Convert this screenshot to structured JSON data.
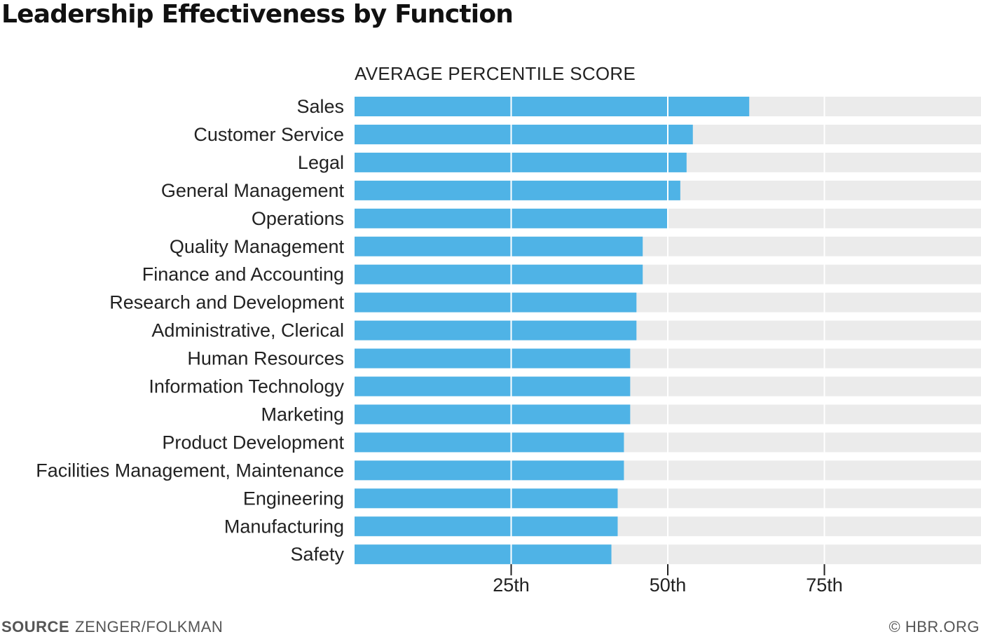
{
  "header": {
    "title": "Leadership Effectiveness by Function"
  },
  "footer": {
    "source_key": "SOURCE",
    "source_value": "ZENGER/FOLKMAN",
    "credit": "© HBR.ORG"
  },
  "colors": {
    "bar": "#4fb3e6",
    "track": "#ebebeb",
    "grid": "#ffffff",
    "tick": "#222222"
  },
  "chart_data": {
    "type": "bar",
    "orientation": "horizontal",
    "title": "Leadership Effectiveness by Function",
    "xlabel": "AVERAGE PERCENTILE SCORE",
    "ylabel": "",
    "xlim": [
      0,
      100
    ],
    "xticks": [
      {
        "value": 25,
        "label": "25th"
      },
      {
        "value": 50,
        "label": "50th"
      },
      {
        "value": 75,
        "label": "75th"
      }
    ],
    "grid": true,
    "categories": [
      "Sales",
      "Customer Service",
      "Legal",
      "General Management",
      "Operations",
      "Quality Management",
      "Finance and Accounting",
      "Research and Development",
      "Administrative, Clerical",
      "Human Resources",
      "Information Technology",
      "Marketing",
      "Product Development",
      "Facilities Management, Maintenance",
      "Engineering",
      "Manufacturing",
      "Safety"
    ],
    "values": [
      63,
      54,
      53,
      52,
      50,
      46,
      46,
      45,
      45,
      44,
      44,
      44,
      43,
      43,
      42,
      42,
      41
    ]
  }
}
